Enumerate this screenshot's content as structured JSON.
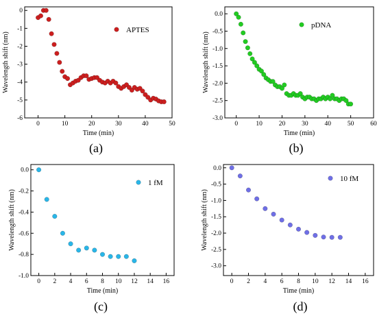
{
  "chart_data": [
    {
      "type": "scatter",
      "panel_label": "(a)",
      "xlabel": "Time (min)",
      "ylabel": "Wavelength shift (nm)",
      "xlim": [
        -5,
        50
      ],
      "ylim": [
        -6,
        0.2
      ],
      "xticks": [
        "0",
        "10",
        "20",
        "30",
        "40",
        "50"
      ],
      "yticks": [
        "0",
        "-1",
        "-2",
        "-3",
        "-4",
        "-5",
        "-6"
      ],
      "legend_position": "top-right",
      "series": [
        {
          "name": "APTES",
          "color": "#cc1f1f",
          "x": [
            0,
            1,
            2,
            3,
            4,
            5,
            6,
            7,
            8,
            9,
            10,
            11,
            12,
            13,
            14,
            15,
            16,
            17,
            18,
            19,
            20,
            21,
            22,
            23,
            24,
            25,
            26,
            27,
            28,
            29,
            30,
            31,
            32,
            33,
            34,
            35,
            36,
            37,
            38,
            39,
            40,
            41,
            42,
            43,
            44,
            45,
            46,
            47
          ],
          "y": [
            -0.4,
            -0.3,
            0.0,
            0.0,
            -0.5,
            -1.3,
            -1.9,
            -2.4,
            -2.9,
            -3.4,
            -3.7,
            -3.8,
            -4.15,
            -4.05,
            -3.95,
            -3.9,
            -3.75,
            -3.65,
            -3.65,
            -3.85,
            -3.8,
            -3.75,
            -3.75,
            -3.9,
            -4.0,
            -4.05,
            -3.95,
            -4.05,
            -3.95,
            -4.05,
            -4.25,
            -4.35,
            -4.25,
            -4.15,
            -4.3,
            -4.45,
            -4.3,
            -4.4,
            -4.35,
            -4.5,
            -4.7,
            -4.85,
            -5.0,
            -4.9,
            -4.95,
            -5.05,
            -5.1,
            -5.1
          ]
        }
      ]
    },
    {
      "type": "scatter",
      "panel_label": "(b)",
      "xlabel": "Time (min)",
      "ylabel": "Wavelength shift (nm)",
      "xlim": [
        -5,
        60
      ],
      "ylim": [
        -3.0,
        0.2
      ],
      "xticks": [
        "0",
        "10",
        "20",
        "30",
        "40",
        "50",
        "60"
      ],
      "yticks": [
        "0.0",
        "-0.5",
        "-1.0",
        "-1.5",
        "-2.0",
        "-2.5",
        "-3.0"
      ],
      "legend_position": "top-right",
      "series": [
        {
          "name": "pDNA",
          "color": "#22cc22",
          "x": [
            0,
            1,
            2,
            3,
            4,
            5,
            6,
            7,
            8,
            9,
            10,
            11,
            12,
            13,
            14,
            15,
            16,
            17,
            18,
            19,
            20,
            21,
            22,
            23,
            24,
            25,
            26,
            27,
            28,
            29,
            30,
            31,
            32,
            33,
            34,
            35,
            36,
            37,
            38,
            39,
            40,
            41,
            42,
            43,
            44,
            45,
            46,
            47,
            48,
            49,
            50
          ],
          "y": [
            0.0,
            -0.1,
            -0.3,
            -0.55,
            -0.8,
            -0.98,
            -1.15,
            -1.3,
            -1.4,
            -1.5,
            -1.6,
            -1.65,
            -1.75,
            -1.85,
            -1.9,
            -1.95,
            -1.95,
            -2.05,
            -2.1,
            -2.1,
            -2.15,
            -2.05,
            -2.3,
            -2.35,
            -2.35,
            -2.3,
            -2.35,
            -2.35,
            -2.3,
            -2.4,
            -2.45,
            -2.4,
            -2.4,
            -2.45,
            -2.45,
            -2.5,
            -2.45,
            -2.45,
            -2.4,
            -2.45,
            -2.4,
            -2.45,
            -2.35,
            -2.45,
            -2.45,
            -2.5,
            -2.45,
            -2.45,
            -2.5,
            -2.6,
            -2.6
          ]
        }
      ]
    },
    {
      "type": "scatter",
      "panel_label": "(c)",
      "xlabel": "Time (min)",
      "ylabel": "Wavelength shift (nm)",
      "xlim": [
        -1,
        17
      ],
      "ylim": [
        -1.0,
        0.05
      ],
      "xticks": [
        "0",
        "2",
        "4",
        "6",
        "8",
        "10",
        "12",
        "14",
        "16"
      ],
      "yticks": [
        "0.0",
        "-0.2",
        "-0.4",
        "-0.6",
        "-0.8",
        "-1.0"
      ],
      "legend_position": "top-right",
      "series": [
        {
          "name": "1 fM",
          "color": "#29b6e8",
          "x": [
            0,
            1,
            2,
            3,
            4,
            5,
            6,
            7,
            8,
            9,
            10,
            11,
            12
          ],
          "y": [
            0.0,
            -0.28,
            -0.44,
            -0.6,
            -0.7,
            -0.76,
            -0.74,
            -0.76,
            -0.8,
            -0.82,
            -0.82,
            -0.82,
            -0.86
          ]
        }
      ]
    },
    {
      "type": "scatter",
      "panel_label": "(d)",
      "xlabel": "Time (min)",
      "ylabel": "Wavelength shift (nm)",
      "xlim": [
        -1,
        17
      ],
      "ylim": [
        -3.3,
        0.1
      ],
      "xticks": [
        "0",
        "2",
        "4",
        "6",
        "8",
        "10",
        "12",
        "14",
        "16"
      ],
      "yticks": [
        "0.0",
        "-0.5",
        "-1.0",
        "-1.5",
        "-2.0",
        "-2.5",
        "-3.0"
      ],
      "legend_position": "top-right",
      "series": [
        {
          "name": "10 fM",
          "color": "#6f6fe6",
          "x": [
            0,
            1,
            2,
            3,
            4,
            5,
            6,
            7,
            8,
            9,
            10,
            11,
            12,
            13
          ],
          "y": [
            0.0,
            -0.25,
            -0.68,
            -0.95,
            -1.25,
            -1.42,
            -1.6,
            -1.75,
            -1.88,
            -1.98,
            -2.07,
            -2.12,
            -2.13,
            -2.13
          ]
        }
      ]
    }
  ]
}
